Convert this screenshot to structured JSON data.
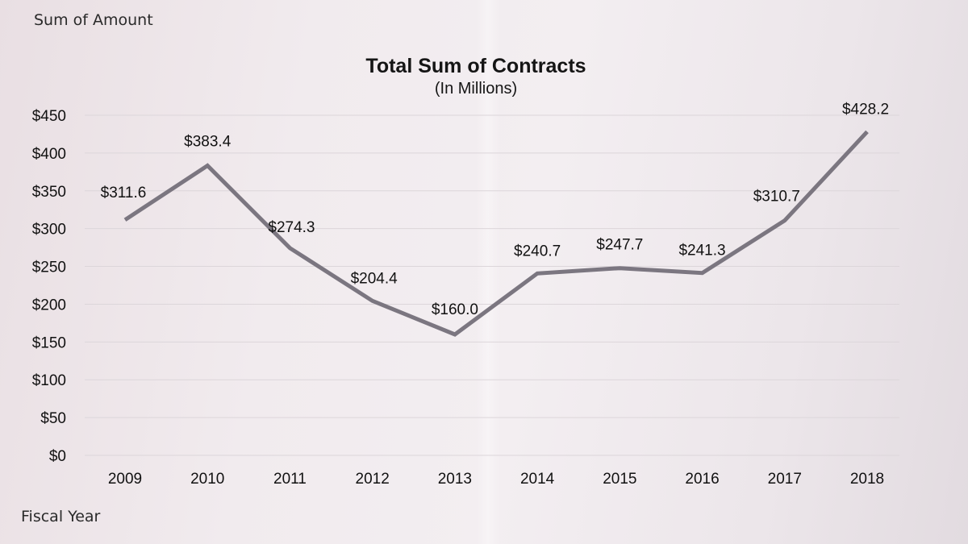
{
  "header": {
    "value_field_label": "Sum of Amount",
    "axis_field_label": "Fiscal Year"
  },
  "chart_data": {
    "type": "line",
    "title": "Total Sum of Contracts",
    "subtitle": "(In Millions)",
    "xlabel": "",
    "ylabel": "",
    "categories": [
      "2009",
      "2010",
      "2011",
      "2012",
      "2013",
      "2014",
      "2015",
      "2016",
      "2017",
      "2018"
    ],
    "series": [
      {
        "values": [
          311.6,
          383.4,
          274.3,
          204.4,
          160.0,
          240.7,
          247.7,
          241.3,
          310.7,
          428.2
        ],
        "data_labels": [
          "$311.6",
          "$383.4",
          "$274.3",
          "$204.4",
          "$160.0",
          "$240.7",
          "$247.7",
          "$241.3",
          "$310.7",
          "$428.2"
        ],
        "color": "#7b7680"
      }
    ],
    "y_ticks": [
      0,
      50,
      100,
      150,
      200,
      250,
      300,
      350,
      400,
      450
    ],
    "y_tick_labels": [
      "$0",
      "$50",
      "$100",
      "$150",
      "$200",
      "$250",
      "$300",
      "$350",
      "$400",
      "$450"
    ],
    "ylim": [
      0,
      450
    ],
    "grid": true,
    "legend": "none"
  }
}
